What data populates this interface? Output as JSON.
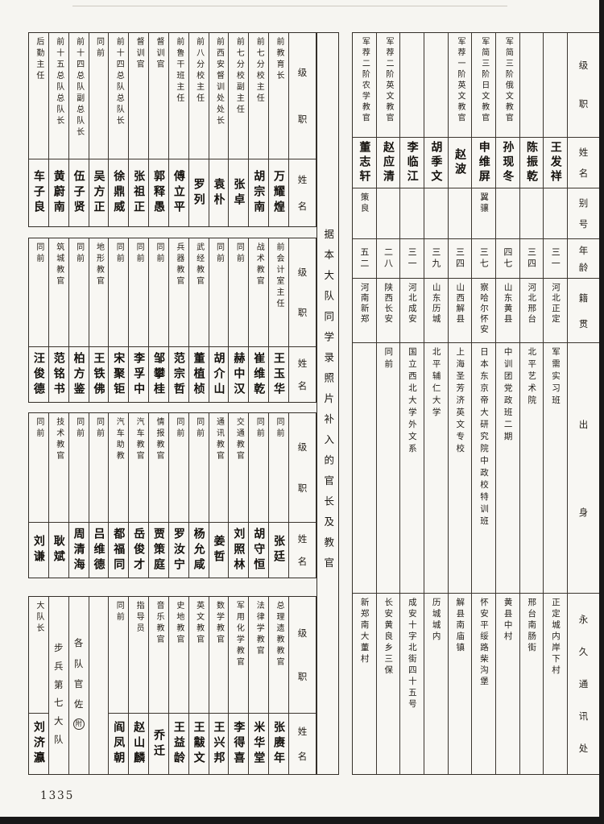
{
  "page": {
    "number": "1335"
  },
  "headers": {
    "level": "级职",
    "name": "姓名",
    "alias": "别号",
    "age": "年龄",
    "origin": "籍贯",
    "background": "出身",
    "address": "永久通讯处"
  },
  "center_note": "据本大队同学录照片补入的官长及教官",
  "left_bands": [
    {
      "cols": [
        {
          "level": "后勤主任",
          "name": "车子良"
        },
        {
          "level": "前十五总队总队长",
          "name": "黄蔚南"
        },
        {
          "level": "前十四总队副总队长",
          "name": "伍子贤"
        },
        {
          "level": "同前",
          "name": "吴方正"
        },
        {
          "level": "前十四总队总队长",
          "name": "徐鼎威"
        },
        {
          "level": "督训官",
          "name": "张祖正"
        },
        {
          "level": "督训官",
          "name": "郭释愚"
        },
        {
          "level": "前鲁干班主任",
          "name": "傅立平"
        },
        {
          "level": "前八分校主任",
          "name": "罗列"
        },
        {
          "level": "前西安督训处处长",
          "name": "袁朴"
        },
        {
          "level": "前七分校副主任",
          "name": "张卓"
        },
        {
          "level": "前七分校主任",
          "name": "胡宗南"
        },
        {
          "level": "前教育长",
          "name": "万耀煌"
        }
      ]
    },
    {
      "cols": [
        {
          "level": "同前",
          "name": "汪俊德"
        },
        {
          "level": "筑城教官",
          "name": "范铭书"
        },
        {
          "level": "同前",
          "name": "柏方鉴"
        },
        {
          "level": "地形教官",
          "name": "王铁佛"
        },
        {
          "level": "同前",
          "name": "宋聚钜"
        },
        {
          "level": "同前",
          "name": "李孚中"
        },
        {
          "level": "同前",
          "name": "邹攀桂"
        },
        {
          "level": "兵器教官",
          "name": "范宗哲"
        },
        {
          "level": "武经教官",
          "name": "董植桢"
        },
        {
          "level": "同前",
          "name": "胡介山"
        },
        {
          "level": "同前",
          "name": "赫中汉"
        },
        {
          "level": "战术教官",
          "name": "崔维乾"
        },
        {
          "level": "前会计室主任",
          "name": "王玉华"
        }
      ]
    },
    {
      "cols": [
        {
          "level": "同前",
          "name": "刘谦"
        },
        {
          "level": "技术教官",
          "name": "耿斌"
        },
        {
          "level": "同前",
          "name": "周清海"
        },
        {
          "level": "同前",
          "name": "吕维德"
        },
        {
          "level": "汽车助教",
          "name": "都福同"
        },
        {
          "level": "汽车教官",
          "name": "岳俊才"
        },
        {
          "level": "情报教官",
          "name": "贾策庭"
        },
        {
          "level": "同前",
          "name": "罗汝宁"
        },
        {
          "level": "同前",
          "name": "杨允咸"
        },
        {
          "level": "通讯教官",
          "name": "姜哲"
        },
        {
          "level": "交通教官",
          "name": "刘照林"
        },
        {
          "level": "同前",
          "name": "胡守恒"
        },
        {
          "level": "同前",
          "name": "张廷"
        }
      ]
    },
    {
      "cols": [
        {
          "level": "大队长",
          "name": "刘济瀛"
        },
        {
          "span": "步兵第七大队"
        },
        {
          "span": "各队官佐",
          "badge": "附"
        },
        {
          "span": ""
        },
        {
          "level": "同前",
          "name": "阎凤朝"
        },
        {
          "level": "指导员",
          "name": "赵山麟"
        },
        {
          "level": "音乐教官",
          "name": "乔迁"
        },
        {
          "level": "史地教官",
          "name": "王益龄"
        },
        {
          "level": "英文教官",
          "name": "王黻文"
        },
        {
          "level": "数学教官",
          "name": "王兴邦"
        },
        {
          "level": "军用化学教官",
          "name": "李得喜"
        },
        {
          "level": "法律学教官",
          "name": "米华堂"
        },
        {
          "level": "总理遗教教官",
          "name": "张赓年"
        }
      ]
    }
  ],
  "right_table": {
    "people": [
      {
        "level": "军荐二阶农学教官",
        "name": "董志轩",
        "alias": "策良",
        "age": "五二",
        "origin": "河南新郑",
        "background": "",
        "address": "新郑南大董村"
      },
      {
        "level": "军荐二阶英文教官",
        "name": "赵应清",
        "alias": "",
        "age": "二八",
        "origin": "陕西长安",
        "background": "同前",
        "address": "长安黄良乡三保"
      },
      {
        "level": "",
        "name": "李临江",
        "alias": "",
        "age": "三一",
        "origin": "河北成安",
        "background": "国立西北大学外文系",
        "address": "成安十字北街四十五号"
      },
      {
        "level": "",
        "name": "胡季文",
        "alias": "",
        "age": "三九",
        "origin": "山东历城",
        "background": "北平辅仁大学",
        "address": "历城城内"
      },
      {
        "level": "军荐一阶英文教官",
        "name": "赵波",
        "alias": "",
        "age": "三四",
        "origin": "山西解县",
        "background": "上海圣芳济英文专校",
        "address": "解县南庙镇"
      },
      {
        "level": "军简三阶日文教官",
        "name": "申维屏",
        "alias": "翼骧",
        "age": "三七",
        "origin": "察哈尔怀安",
        "background": "日本东京帝大研究院中政校特训班",
        "address": "怀安平绥路柴沟堡"
      },
      {
        "level": "军简三阶俄文教官",
        "name": "孙现冬",
        "alias": "",
        "age": "四七",
        "origin": "山东黄县",
        "background": "中训团党政班二期",
        "address": "黄县中村"
      },
      {
        "level": "",
        "name": "陈振乾",
        "alias": "",
        "age": "三四",
        "origin": "河北邢台",
        "background": "北平艺术院",
        "address": "邢台南肠街"
      },
      {
        "level": "",
        "name": "王发祥",
        "alias": "",
        "age": "三一",
        "origin": "河北正定",
        "background": "军需实习班",
        "address": "正定城内岸下村"
      }
    ]
  }
}
